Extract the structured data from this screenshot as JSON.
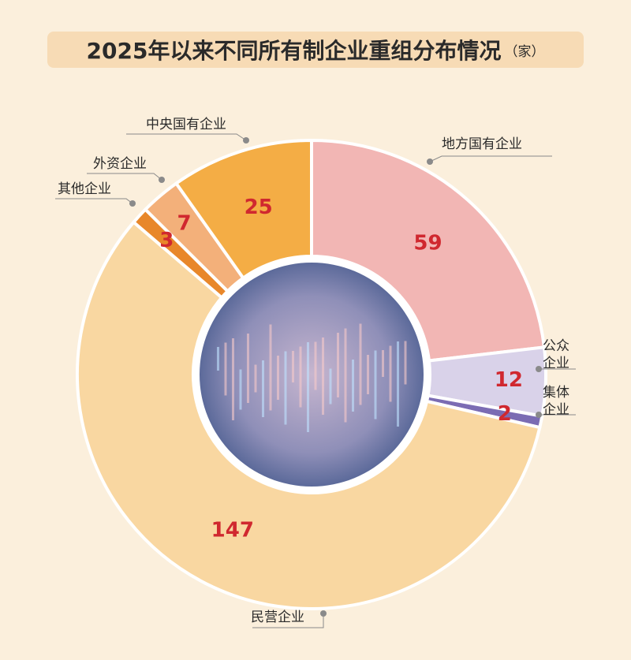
{
  "chart_data": {
    "type": "donut",
    "title": "2025年以来不同所有制企业重组分布情况",
    "unit": "（家）",
    "categories": [
      "地方国有企业",
      "公众企业",
      "集体企业",
      "民营企业",
      "其他企业",
      "外资企业",
      "中央国有企业"
    ],
    "values": [
      59,
      12,
      2,
      147,
      3,
      7,
      25
    ],
    "colors": [
      "#f2b6b4",
      "#d9d2e9",
      "#7b6cb3",
      "#f9d7a1",
      "#e8872a",
      "#f3b07a",
      "#f4ad45"
    ]
  }
}
